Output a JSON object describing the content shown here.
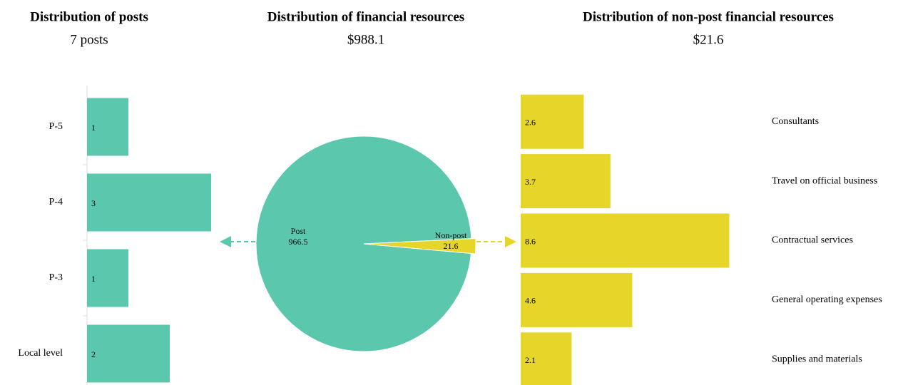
{
  "chart_data": [
    {
      "type": "bar",
      "title": "Distribution of posts",
      "subtitle": "7 posts",
      "categories": [
        "P-5",
        "P-4",
        "P-3",
        "Local level"
      ],
      "values": [
        1,
        3,
        1,
        2
      ],
      "color": "#5bc8ad"
    },
    {
      "type": "pie",
      "title": "Distribution of financial resources",
      "subtitle": "$988.1",
      "categories": [
        "Post",
        "Non-post"
      ],
      "values": [
        966.5,
        21.6
      ],
      "colors": [
        "#5bc8ad",
        "#e6d62a"
      ]
    },
    {
      "type": "bar",
      "title": "Distribution of non-post financial resources",
      "subtitle": "$21.6",
      "categories": [
        "Consultants",
        "Travel on official business",
        "Contractual services",
        "General operating expenses",
        "Supplies and materials"
      ],
      "values": [
        2.6,
        3.7,
        8.6,
        4.6,
        2.1
      ],
      "color": "#e6d62a"
    }
  ]
}
